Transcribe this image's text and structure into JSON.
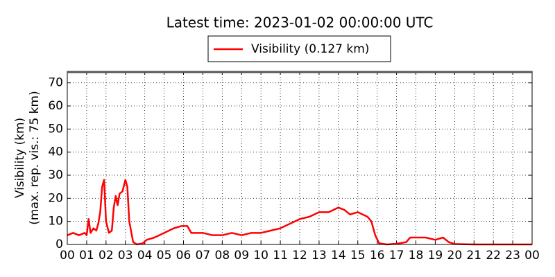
{
  "chart_data": {
    "type": "line",
    "title": "Latest time: 2023-01-02 00:00:00 UTC",
    "ylabel": [
      "Visibility (km)",
      "(max. rep. vis.: 75 km)"
    ],
    "xlim": [
      0,
      24
    ],
    "ylim": [
      0,
      75
    ],
    "xticks": [
      {
        "value": 0,
        "label": "00"
      },
      {
        "value": 1,
        "label": "01"
      },
      {
        "value": 2,
        "label": "02"
      },
      {
        "value": 3,
        "label": "03"
      },
      {
        "value": 4,
        "label": "04"
      },
      {
        "value": 5,
        "label": "05"
      },
      {
        "value": 6,
        "label": "06"
      },
      {
        "value": 7,
        "label": "07"
      },
      {
        "value": 8,
        "label": "08"
      },
      {
        "value": 9,
        "label": "09"
      },
      {
        "value": 10,
        "label": "10"
      },
      {
        "value": 11,
        "label": "11"
      },
      {
        "value": 12,
        "label": "12"
      },
      {
        "value": 13,
        "label": "13"
      },
      {
        "value": 14,
        "label": "14"
      },
      {
        "value": 15,
        "label": "15"
      },
      {
        "value": 16,
        "label": "16"
      },
      {
        "value": 17,
        "label": "17"
      },
      {
        "value": 18,
        "label": "18"
      },
      {
        "value": 19,
        "label": "19"
      },
      {
        "value": 20,
        "label": "20"
      },
      {
        "value": 21,
        "label": "21"
      },
      {
        "value": 22,
        "label": "22"
      },
      {
        "value": 23,
        "label": "23"
      },
      {
        "value": 24,
        "label": "00"
      }
    ],
    "yticks": [
      0,
      10,
      20,
      30,
      40,
      50,
      60,
      70
    ],
    "grid": true,
    "legend": "upper center",
    "x": [
      0,
      0.3,
      0.6,
      0.9,
      1.0,
      1.1,
      1.2,
      1.35,
      1.5,
      1.6,
      1.7,
      1.8,
      1.9,
      2.0,
      2.15,
      2.3,
      2.4,
      2.5,
      2.6,
      2.7,
      2.85,
      3.0,
      3.1,
      3.2,
      3.4,
      3.6,
      3.9,
      4.1,
      4.5,
      5.0,
      5.5,
      5.9,
      6.2,
      6.4,
      7,
      7.5,
      8,
      8.5,
      9,
      9.5,
      10,
      10.5,
      11,
      11.5,
      12,
      12.5,
      13,
      13.5,
      14,
      14.3,
      14.6,
      15,
      15.5,
      15.7,
      15.9,
      16.1,
      16.5,
      17,
      17.5,
      17.7,
      18,
      18.5,
      19,
      19.4,
      19.7,
      20,
      21,
      22,
      23,
      24
    ],
    "series": [
      {
        "name": "Visibility (0.127 km)",
        "color": "#ff0000",
        "values": [
          4,
          5,
          4,
          5,
          4,
          11,
          5,
          7,
          6,
          9,
          14,
          25,
          28,
          10,
          5,
          6,
          16,
          21,
          17,
          22,
          23,
          28,
          25,
          10,
          1,
          0,
          0.5,
          2,
          3,
          5,
          7,
          8,
          8,
          5,
          5,
          4,
          4,
          5,
          4,
          5,
          5,
          6,
          7,
          9,
          11,
          12,
          14,
          14,
          16,
          15,
          13,
          14,
          12,
          10,
          4,
          0.5,
          0,
          0.3,
          1,
          3,
          3,
          3,
          2,
          3,
          1,
          0.2,
          0,
          0,
          0,
          0
        ]
      }
    ]
  }
}
